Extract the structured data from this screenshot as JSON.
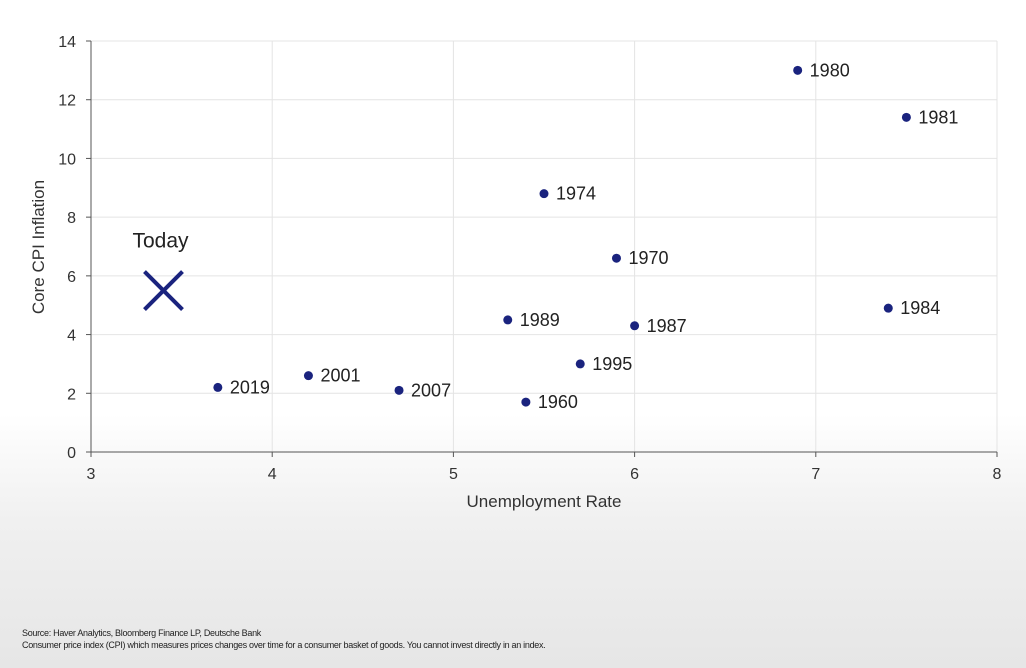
{
  "chart_data": {
    "type": "scatter",
    "xlabel": "Unemployment Rate",
    "ylabel": "Core CPI Inflation",
    "xlim": [
      3,
      8
    ],
    "ylim": [
      0,
      14
    ],
    "x_ticks": [
      3,
      4,
      5,
      6,
      7,
      8
    ],
    "y_ticks": [
      0,
      2,
      4,
      6,
      8,
      10,
      12,
      14
    ],
    "grid": true,
    "point_color": "#1a237e",
    "points": [
      {
        "label": "1980",
        "x": 6.9,
        "y": 13.0
      },
      {
        "label": "1981",
        "x": 7.5,
        "y": 11.4
      },
      {
        "label": "1974",
        "x": 5.5,
        "y": 8.8
      },
      {
        "label": "1970",
        "x": 5.9,
        "y": 6.6
      },
      {
        "label": "1984",
        "x": 7.4,
        "y": 4.9
      },
      {
        "label": "1989",
        "x": 5.3,
        "y": 4.5
      },
      {
        "label": "1987",
        "x": 6.0,
        "y": 4.3
      },
      {
        "label": "1995",
        "x": 5.7,
        "y": 3.0
      },
      {
        "label": "2001",
        "x": 4.2,
        "y": 2.6
      },
      {
        "label": "2019",
        "x": 3.7,
        "y": 2.2
      },
      {
        "label": "2007",
        "x": 4.7,
        "y": 2.1
      },
      {
        "label": "1960",
        "x": 5.4,
        "y": 1.7
      }
    ],
    "annotation": {
      "label": "Today",
      "x": 3.4,
      "y": 5.5,
      "marker": "x"
    }
  },
  "footer": {
    "source": "Source: Haver Analytics, Bloomberg Finance LP, Deutsche Bank",
    "note": "Consumer price index (CPI) which measures prices changes over time for a consumer basket of goods. You cannot invest directly in an index."
  }
}
